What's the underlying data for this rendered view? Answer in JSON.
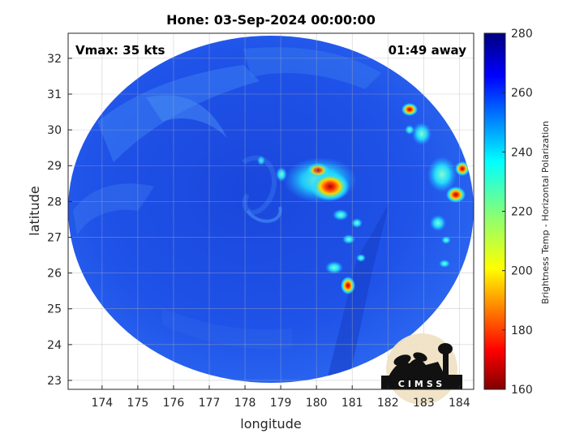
{
  "title": "Hone: 03-Sep-2024 00:00:00",
  "vmax_label": "Vmax: 35 kts",
  "time_away_label": "01:49 away",
  "x_axis": {
    "label": "longitude",
    "ticks": [
      "174",
      "175",
      "176",
      "177",
      "178",
      "179",
      "180",
      "181",
      "182",
      "183",
      "184"
    ]
  },
  "y_axis": {
    "label": "latitude",
    "ticks": [
      "32",
      "31",
      "30",
      "29",
      "28",
      "27",
      "26",
      "25",
      "24",
      "23"
    ]
  },
  "colorbar": {
    "label": "Brightness Temp - Horizontal Polarization",
    "ticks": [
      "280",
      "260",
      "240",
      "220",
      "200",
      "180",
      "160"
    ],
    "colormap": "jet"
  },
  "logo": {
    "text": "CIMSS"
  },
  "colors": {
    "background_field": "#1f4fe6",
    "field_light": "#3f86f0",
    "convection_core": "#e0321a"
  },
  "icons": [
    "cimss-logo-icon"
  ]
}
